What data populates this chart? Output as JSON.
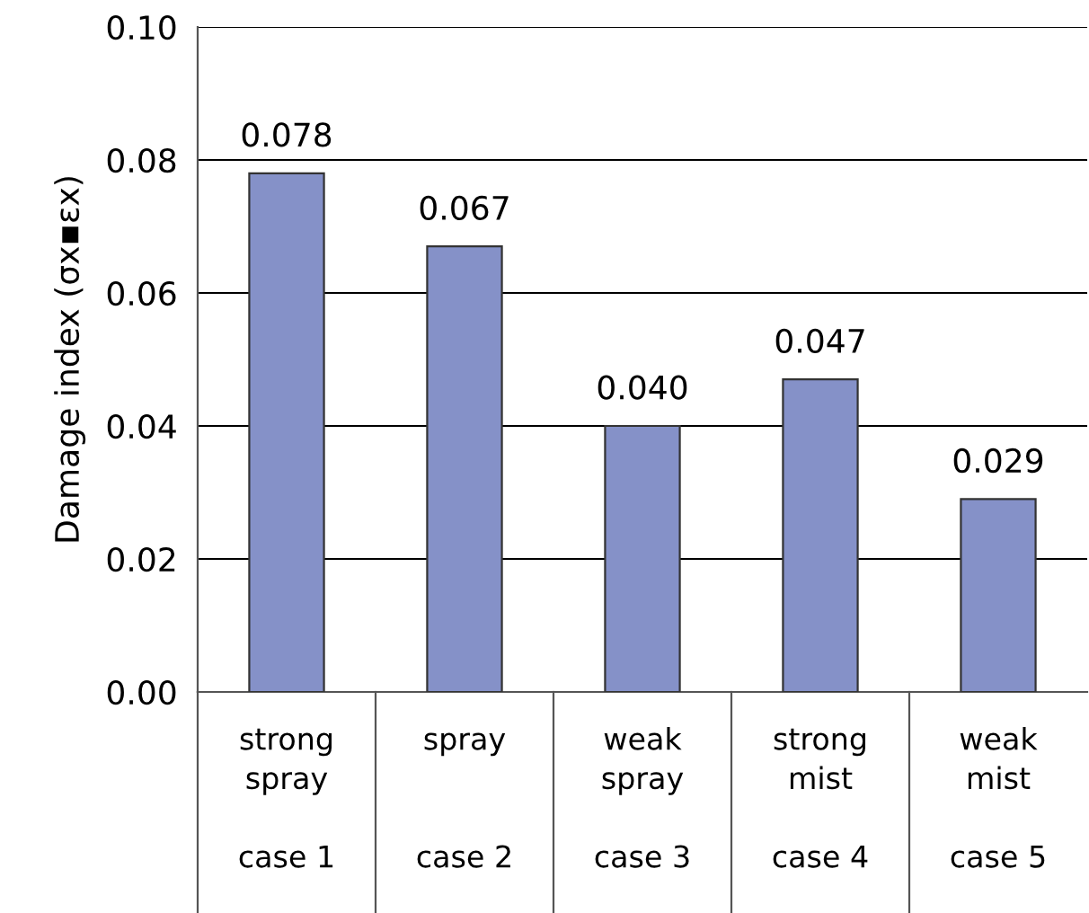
{
  "chart_data": {
    "type": "bar",
    "ylabel": "Damage index (σx▪εx)",
    "categories": [
      "strong\nspray\n\ncase 1",
      "spray\n\n\ncase 2",
      "weak\nspray\n\ncase 3",
      "strong\nmist\n\ncase 4",
      "weak\nmist\n\ncase 5"
    ],
    "values": [
      0.078,
      0.067,
      0.04,
      0.047,
      0.029
    ],
    "color": "#8591c8",
    "ylim": [
      0,
      0.1
    ],
    "yticks": [
      {
        "value": 0,
        "label": "0.00"
      },
      {
        "value": 0.02,
        "label": "0.02"
      },
      {
        "value": 0.04,
        "label": "0.04"
      },
      {
        "value": 0.06,
        "label": "0.06"
      },
      {
        "value": 0.08,
        "label": "0.08"
      },
      {
        "value": 0.1,
        "label": "0.10"
      }
    ],
    "value_labels": [
      "0.078",
      "0.067",
      "0.040",
      "0.047",
      "0.029"
    ],
    "grid": "y"
  }
}
